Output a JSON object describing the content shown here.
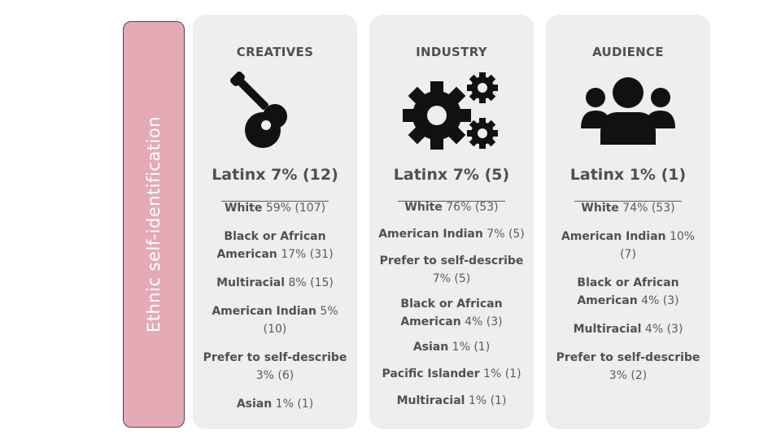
{
  "side_label": "Ethnic self-identification",
  "cards": [
    {
      "title": "CREATIVES",
      "icon": "guitar-icon",
      "headline": "Latinx 7% (12)",
      "items": [
        {
          "label": "White",
          "value": "59% (107)"
        },
        {
          "label": "Black or African American",
          "value": "17% (31)"
        },
        {
          "label": "Multiracial",
          "value": "8% (15)"
        },
        {
          "label": "American Indian",
          "value": "5% (10)"
        },
        {
          "label": "Prefer to self-describe",
          "value": "3% (6)"
        },
        {
          "label": "Asian",
          "value": "1% (1)"
        }
      ]
    },
    {
      "title": "INDUSTRY",
      "icon": "gears-icon",
      "headline": "Latinx 7% (5)",
      "items": [
        {
          "label": "White",
          "value": "76% (53)"
        },
        {
          "label": "American Indian",
          "value": "7% (5)"
        },
        {
          "label": "Prefer to self-describe",
          "value": "7% (5)"
        },
        {
          "label": "Black or African American",
          "value": "4% (3)"
        },
        {
          "label": "Asian",
          "value": "1% (1)"
        },
        {
          "label": "Pacific Islander",
          "value": "1% (1)"
        },
        {
          "label": "Multiracial",
          "value": "1% (1)"
        }
      ]
    },
    {
      "title": "AUDIENCE",
      "icon": "users-icon",
      "headline": "Latinx 1% (1)",
      "items": [
        {
          "label": "White",
          "value": "74% (53)"
        },
        {
          "label": "American Indian",
          "value": "10% (7)"
        },
        {
          "label": "Black or African American",
          "value": "4% (3)"
        },
        {
          "label": "Multiracial",
          "value": "4% (3)"
        },
        {
          "label": "Prefer to self-describe",
          "value": "3% (2)"
        }
      ]
    }
  ]
}
